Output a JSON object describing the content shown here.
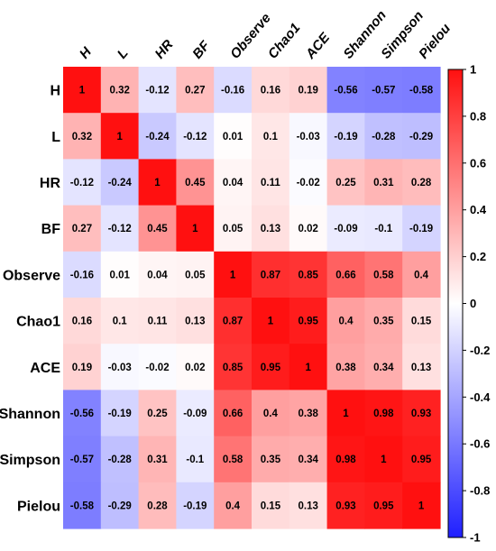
{
  "chart_data": {
    "type": "heatmap",
    "title": "",
    "rows": [
      "H",
      "L",
      "HR",
      "BF",
      "Observe",
      "Chao1",
      "ACE",
      "Shannon",
      "Simpson",
      "Pielou"
    ],
    "columns": [
      "H",
      "L",
      "HR",
      "BF",
      "Observe",
      "Chao1",
      "ACE",
      "Shannon",
      "Simpson",
      "Pielou"
    ],
    "values": [
      [
        "1",
        "0.32",
        "-0.12",
        "0.27",
        "-0.16",
        "0.16",
        "0.19",
        "-0.56",
        "-0.57",
        "-0.58"
      ],
      [
        "0.32",
        "1",
        "-0.24",
        "-0.12",
        "0.01",
        "0.1",
        "-0.03",
        "-0.19",
        "-0.28",
        "-0.29"
      ],
      [
        "-0.12",
        "-0.24",
        "1",
        "0.45",
        "0.04",
        "0.11",
        "-0.02",
        "0.25",
        "0.31",
        "0.28"
      ],
      [
        "0.27",
        "-0.12",
        "0.45",
        "1",
        "0.05",
        "0.13",
        "0.02",
        "-0.09",
        "-0.1",
        "-0.19"
      ],
      [
        "-0.16",
        "0.01",
        "0.04",
        "0.05",
        "1",
        "0.87",
        "0.85",
        "0.66",
        "0.58",
        "0.4"
      ],
      [
        "0.16",
        "0.1",
        "0.11",
        "0.13",
        "0.87",
        "1",
        "0.95",
        "0.4",
        "0.35",
        "0.15"
      ],
      [
        "0.19",
        "-0.03",
        "-0.02",
        "0.02",
        "0.85",
        "0.95",
        "1",
        "0.38",
        "0.34",
        "0.13"
      ],
      [
        "-0.56",
        "-0.19",
        "0.25",
        "-0.09",
        "0.66",
        "0.4",
        "0.38",
        "1",
        "0.98",
        "0.93"
      ],
      [
        "-0.57",
        "-0.28",
        "0.31",
        "-0.1",
        "0.58",
        "0.35",
        "0.34",
        "0.98",
        "1",
        "0.95"
      ],
      [
        "-0.58",
        "-0.29",
        "0.28",
        "-0.19",
        "0.4",
        "0.15",
        "0.13",
        "0.93",
        "0.95",
        "1"
      ]
    ],
    "colorbar": {
      "range": [
        -1,
        1
      ],
      "ticks": [
        "1",
        "0.8",
        "0.6",
        "0.4",
        "0.2",
        "0",
        "-0.2",
        "-0.4",
        "-0.6",
        "-0.8",
        "-1"
      ],
      "colors": {
        "negative": "#1f1fff",
        "zero": "#ffffff",
        "positive": "#ff1010"
      }
    }
  }
}
